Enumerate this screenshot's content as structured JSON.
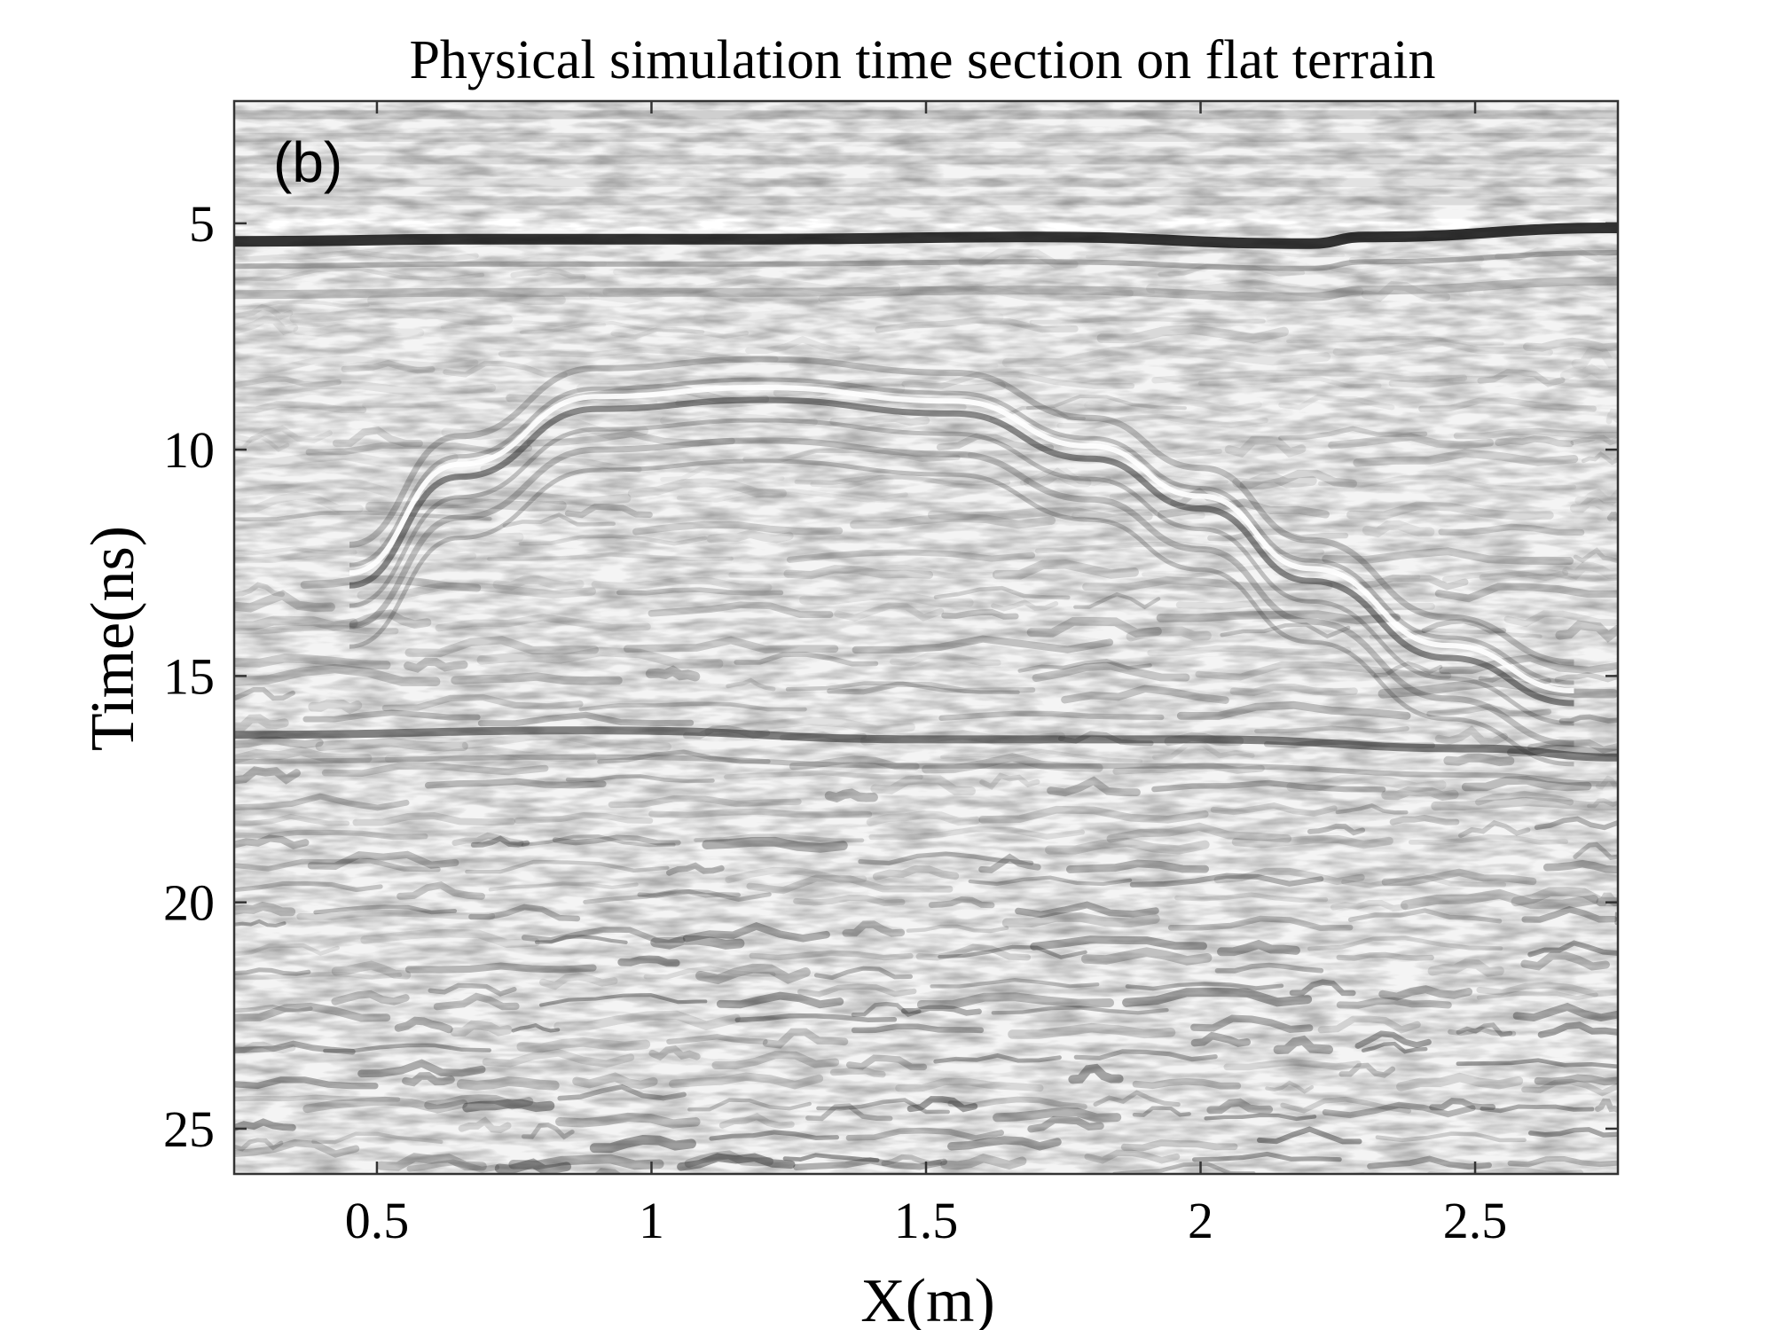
{
  "chart_data": {
    "type": "heatmap",
    "title": "Physical simulation time section on flat terrain",
    "panel_label": "(b)",
    "xlabel": "X(m)",
    "ylabel": "Time(ns)",
    "xlim": [
      0.24,
      2.76
    ],
    "ylim": [
      26,
      2.3
    ],
    "y_reversed": true,
    "colormap": "grayscale",
    "x_ticks": [
      0.5,
      1,
      1.5,
      2,
      2.5
    ],
    "x_tick_labels": [
      "0.5",
      "1",
      "1.5",
      "2",
      "2.5"
    ],
    "y_ticks": [
      5,
      10,
      15,
      20,
      25
    ],
    "y_tick_labels": [
      "5",
      "10",
      "15",
      "20",
      "25"
    ],
    "grid": false,
    "reflectors": [
      {
        "name": "surface direct wave",
        "points": [
          [
            0.24,
            5.4
          ],
          [
            0.7,
            5.35
          ],
          [
            1.2,
            5.35
          ],
          [
            1.7,
            5.3
          ],
          [
            2.2,
            5.45
          ],
          [
            2.3,
            5.3
          ],
          [
            2.76,
            5.1
          ]
        ]
      },
      {
        "name": "hyperbolic reflection",
        "points": [
          [
            0.45,
            13.0
          ],
          [
            0.65,
            10.6
          ],
          [
            0.9,
            9.1
          ],
          [
            1.2,
            8.9
          ],
          [
            1.55,
            9.2
          ],
          [
            1.8,
            10.2
          ],
          [
            2.0,
            11.3
          ],
          [
            2.2,
            12.9
          ],
          [
            2.45,
            14.6
          ],
          [
            2.68,
            15.6
          ]
        ]
      },
      {
        "name": "deep interface",
        "points": [
          [
            0.24,
            16.3
          ],
          [
            0.9,
            16.2
          ],
          [
            1.5,
            16.4
          ],
          [
            2.0,
            16.4
          ],
          [
            2.5,
            16.6
          ],
          [
            2.76,
            16.8
          ]
        ]
      }
    ]
  }
}
